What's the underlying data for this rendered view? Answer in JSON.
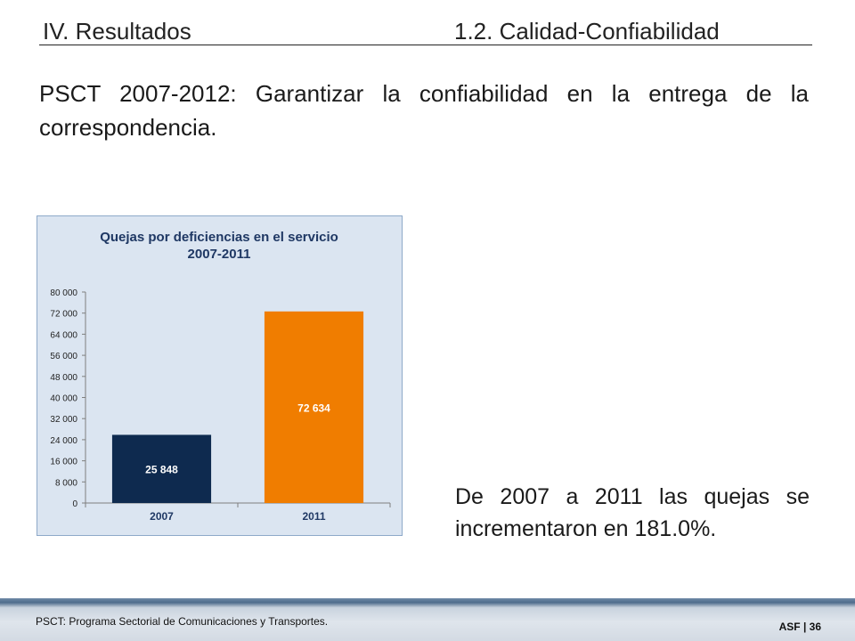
{
  "header": {
    "section": "IV. Resultados",
    "topic": "1.2.  Calidad-Confiabilidad"
  },
  "intro_text": "PSCT 2007-2012: Garantizar la confiabilidad en la entrega de la correspondencia.",
  "summary_text": "De 2007 a 2011 las quejas se incrementaron en 181.0%.",
  "footer": {
    "note": "PSCT: Programa Sectorial de Comunicaciones y Transportes.",
    "page_label": "ASF | 36"
  },
  "chart_data": {
    "type": "bar",
    "title": "Quejas por deficiencias en el servicio",
    "subtitle": "2007-2011",
    "categories": [
      "2007",
      "2011"
    ],
    "values": [
      25848,
      72634
    ],
    "value_labels": [
      "25 848",
      "72 634"
    ],
    "bar_colors": [
      "#0e2a4f",
      "#f07d00"
    ],
    "ylim": [
      0,
      80000
    ],
    "yticks": [
      0,
      8000,
      16000,
      24000,
      32000,
      40000,
      48000,
      56000,
      64000,
      72000,
      80000
    ],
    "ytick_labels": [
      "0",
      "8 000",
      "16 000",
      "24 000",
      "32 000",
      "40 000",
      "48 000",
      "56 000",
      "64 000",
      "72 000",
      "80 000"
    ],
    "grid": false,
    "background": "#dbe5f1"
  }
}
